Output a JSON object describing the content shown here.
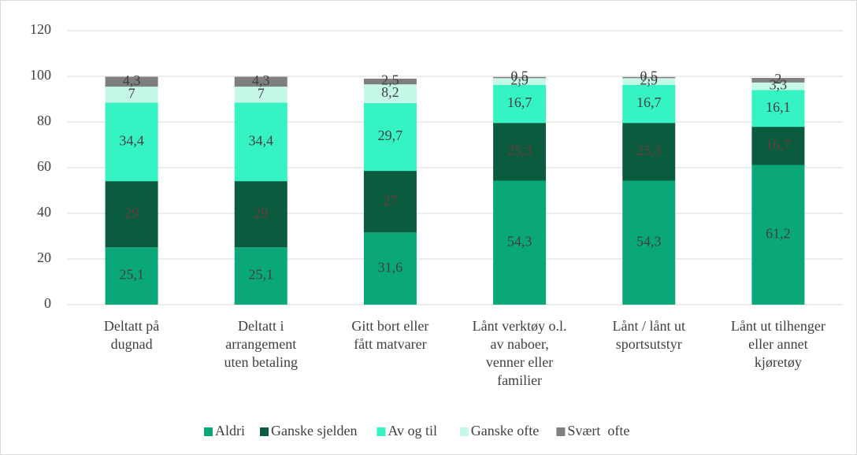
{
  "chart_data": {
    "type": "stacked-bar",
    "categories": [
      [
        "Deltatt på",
        "dugnad"
      ],
      [
        "Deltatt i",
        "arrangement",
        "uten betaling"
      ],
      [
        "Gitt bort eller",
        "fått matvarer"
      ],
      [
        "Lånt verktøy o.l.",
        "av naboer,",
        "venner eller",
        "familier"
      ],
      [
        "Lånt / lånt ut",
        "sportsutstyr"
      ],
      [
        "Lånt ut tilhenger",
        "eller annet",
        "kjøretøy"
      ]
    ],
    "series": [
      {
        "name": "Aldri",
        "color": "#0aa778",
        "values": [
          25.1,
          25.1,
          31.6,
          54.3,
          54.3,
          61.2
        ],
        "value_labels": [
          "25,1",
          "25,1",
          "31,6",
          "54,3",
          "54,3",
          "61,2"
        ]
      },
      {
        "name": "Ganske sjelden",
        "color": "#0b5c3e",
        "values": [
          29,
          29,
          27,
          25.3,
          25.3,
          16.7
        ],
        "value_labels": [
          "29",
          "29",
          "27",
          "25,3",
          "25,3",
          "16,7"
        ]
      },
      {
        "name": "Av og til",
        "color": "#36f3c3",
        "values": [
          34.4,
          34.4,
          29.7,
          16.7,
          16.7,
          16.1
        ],
        "value_labels": [
          "34,4",
          "34,4",
          "29,7",
          "16,7",
          "16,7",
          "16,1"
        ]
      },
      {
        "name": "Ganske ofte",
        "color": "#c6f8e7",
        "values": [
          7,
          7,
          8.2,
          2.9,
          2.9,
          3.3
        ],
        "value_labels": [
          "7",
          "7",
          "8,2",
          "2,9",
          "2,9",
          "3,3"
        ]
      },
      {
        "name": "Svært  ofte",
        "color": "#7f7f7f",
        "values": [
          4.3,
          4.3,
          2.5,
          0.5,
          0.5,
          2
        ],
        "value_labels": [
          "4,3",
          "4,3",
          "2,5",
          "0,5",
          "0,5",
          "2"
        ]
      }
    ],
    "ylim": [
      0,
      120
    ],
    "yticks": [
      0,
      20,
      40,
      60,
      80,
      100,
      120
    ],
    "grid": true,
    "legend": "bottom"
  }
}
